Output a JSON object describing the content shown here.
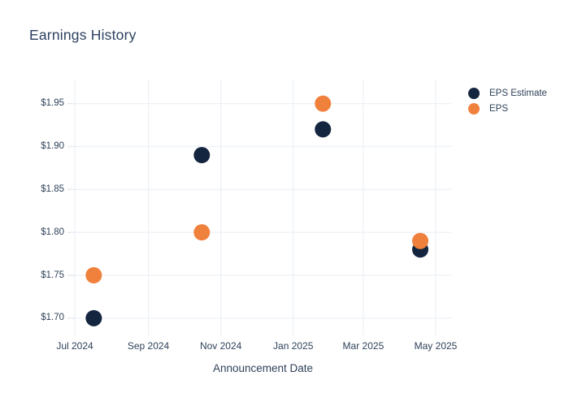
{
  "title": "Earnings History",
  "colors": {
    "eps_estimate": "#14253f",
    "eps": "#f0813c",
    "grid": "#edf1f7",
    "tick": "#e2e8f0",
    "text": "#2f4259",
    "background": "#ffffff"
  },
  "legend": {
    "position": "top-right",
    "items": [
      {
        "label": "EPS Estimate",
        "color_key": "eps_estimate"
      },
      {
        "label": "EPS",
        "color_key": "eps"
      }
    ]
  },
  "chart_data": {
    "type": "scatter",
    "title": "Earnings History",
    "xlabel": "Announcement Date",
    "ylabel": "",
    "grid": true,
    "legend_position": "top-right",
    "x_range": [
      "2024-07-01",
      "2025-05-14"
    ],
    "y_range": [
      1.68,
      1.978
    ],
    "x_ticks": [
      {
        "date": "2024-07-01",
        "label": "Jul 2024"
      },
      {
        "date": "2024-09-01",
        "label": "Sep 2024"
      },
      {
        "date": "2024-11-01",
        "label": "Nov 2024"
      },
      {
        "date": "2025-01-01",
        "label": "Jan 2025"
      },
      {
        "date": "2025-03-01",
        "label": "Mar 2025"
      },
      {
        "date": "2025-05-01",
        "label": "May 2025"
      }
    ],
    "y_ticks": [
      {
        "value": 1.7,
        "label": "$1.70"
      },
      {
        "value": 1.75,
        "label": "$1.75"
      },
      {
        "value": 1.8,
        "label": "$1.80"
      },
      {
        "value": 1.85,
        "label": "$1.85"
      },
      {
        "value": 1.9,
        "label": "$1.90"
      },
      {
        "value": 1.95,
        "label": "$1.95"
      }
    ],
    "series": [
      {
        "name": "EPS Estimate",
        "color_key": "eps_estimate",
        "x": [
          "2024-07-17",
          "2024-10-16",
          "2025-01-26",
          "2025-04-18"
        ],
        "values": [
          1.7,
          1.89,
          1.92,
          1.78
        ]
      },
      {
        "name": "EPS",
        "color_key": "eps",
        "x": [
          "2024-07-17",
          "2024-10-16",
          "2025-01-26",
          "2025-04-18"
        ],
        "values": [
          1.75,
          1.8,
          1.95,
          1.79
        ]
      }
    ]
  }
}
